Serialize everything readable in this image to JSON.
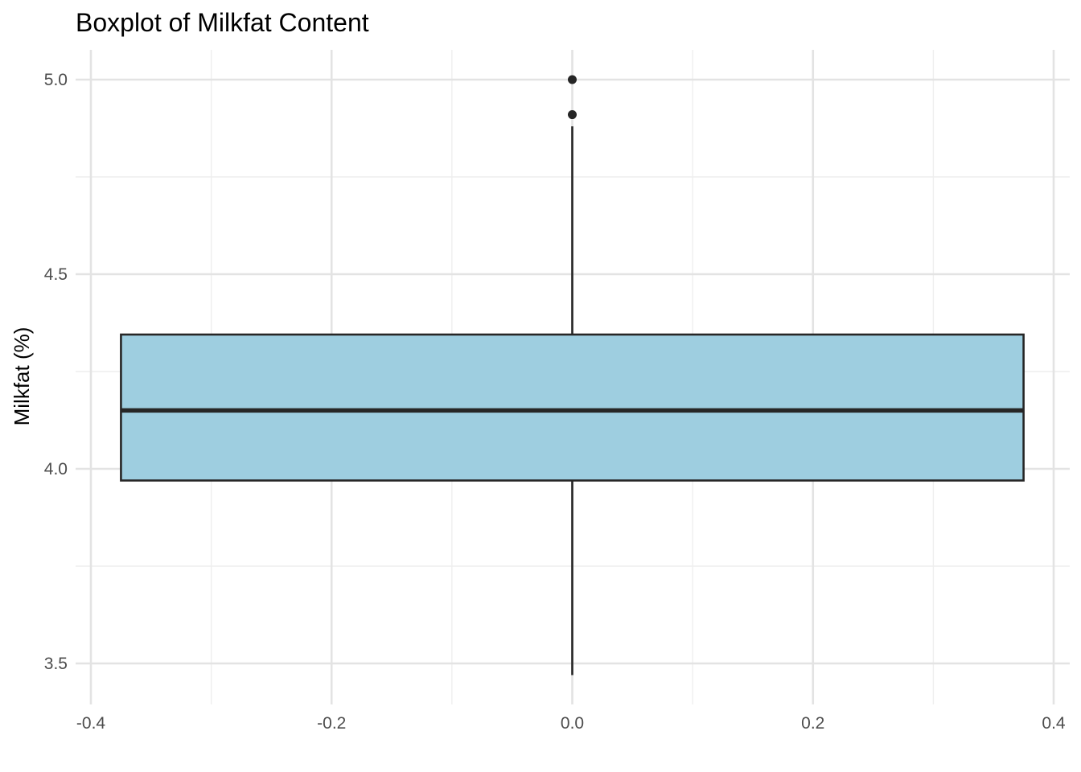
{
  "chart_data": {
    "type": "boxplot",
    "title": "Boxplot of Milkfat Content",
    "xlabel": "",
    "ylabel": "Milkfat (%)",
    "xlim": [
      -0.4,
      0.4
    ],
    "ylim": [
      3.5,
      5.0
    ],
    "x_ticks": [
      {
        "value": -0.4,
        "label": "-0.4"
      },
      {
        "value": -0.2,
        "label": "-0.2"
      },
      {
        "value": 0.0,
        "label": "0.0"
      },
      {
        "value": 0.2,
        "label": "0.2"
      },
      {
        "value": 0.4,
        "label": "0.4"
      }
    ],
    "y_ticks": [
      {
        "value": 3.5,
        "label": "3.5"
      },
      {
        "value": 4.0,
        "label": "4.0"
      },
      {
        "value": 4.5,
        "label": "4.5"
      },
      {
        "value": 5.0,
        "label": "5.0"
      }
    ],
    "grid": true,
    "box": {
      "x": 0.0,
      "x_range": [
        -0.375,
        0.375
      ],
      "lower_whisker": 3.47,
      "q1": 3.97,
      "median": 4.15,
      "q3": 4.345,
      "upper_whisker": 4.88,
      "outliers": [
        4.91,
        5.0
      ]
    },
    "colors": {
      "box_fill": "#9ecee0",
      "box_stroke": "#262626",
      "outlier": "#262626"
    }
  }
}
